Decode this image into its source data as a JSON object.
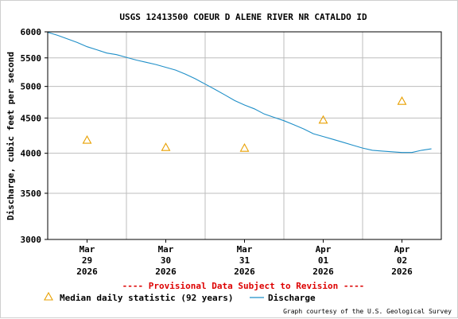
{
  "chart_data": {
    "type": "line",
    "title": "USGS 12413500 COEUR D ALENE RIVER NR CATALDO ID",
    "ylabel": "Discharge, cubic feet per second",
    "xlabel": "",
    "y_scale": "log",
    "ylim": [
      3000,
      6000
    ],
    "y_ticks": [
      3000,
      3500,
      4000,
      4500,
      5000,
      5500,
      6000
    ],
    "y_tick_labels": [
      "3000",
      "3500",
      "4000",
      "4500",
      "5000",
      "5500",
      "6000"
    ],
    "x_range": [
      "2026-03-28 12:00",
      "2026-04-02 12:00"
    ],
    "x_ticks": [
      {
        "x": "2026-03-29 00:00",
        "line1": "Mar",
        "line2": "29",
        "line3": "2026"
      },
      {
        "x": "2026-03-30 00:00",
        "line1": "Mar",
        "line2": "30",
        "line3": "2026"
      },
      {
        "x": "2026-03-31 00:00",
        "line1": "Mar",
        "line2": "31",
        "line3": "2026"
      },
      {
        "x": "2026-04-01 00:00",
        "line1": "Apr",
        "line2": "01",
        "line3": "2026"
      },
      {
        "x": "2026-04-02 00:00",
        "line1": "Apr",
        "line2": "02",
        "line3": "2026"
      }
    ],
    "grid": true,
    "series": [
      {
        "name": "Discharge",
        "color": "#1f8fc8",
        "points": [
          [
            "2026-03-28 12:00",
            5990
          ],
          [
            "2026-03-28 15:00",
            5930
          ],
          [
            "2026-03-28 18:00",
            5860
          ],
          [
            "2026-03-28 21:00",
            5790
          ],
          [
            "2026-03-29 00:00",
            5710
          ],
          [
            "2026-03-29 03:00",
            5650
          ],
          [
            "2026-03-29 06:00",
            5590
          ],
          [
            "2026-03-29 09:00",
            5560
          ],
          [
            "2026-03-29 12:00",
            5510
          ],
          [
            "2026-03-29 15:00",
            5460
          ],
          [
            "2026-03-29 18:00",
            5420
          ],
          [
            "2026-03-29 21:00",
            5380
          ],
          [
            "2026-03-30 00:00",
            5330
          ],
          [
            "2026-03-30 03:00",
            5280
          ],
          [
            "2026-03-30 06:00",
            5210
          ],
          [
            "2026-03-30 09:00",
            5130
          ],
          [
            "2026-03-30 12:00",
            5040
          ],
          [
            "2026-03-30 15:00",
            4950
          ],
          [
            "2026-03-30 18:00",
            4860
          ],
          [
            "2026-03-30 21:00",
            4770
          ],
          [
            "2026-03-31 00:00",
            4700
          ],
          [
            "2026-03-31 03:00",
            4640
          ],
          [
            "2026-03-31 06:00",
            4560
          ],
          [
            "2026-03-31 09:00",
            4510
          ],
          [
            "2026-03-31 12:00",
            4460
          ],
          [
            "2026-03-31 15:00",
            4400
          ],
          [
            "2026-03-31 18:00",
            4340
          ],
          [
            "2026-03-31 21:00",
            4270
          ],
          [
            "2026-04-01 00:00",
            4230
          ],
          [
            "2026-04-01 03:00",
            4190
          ],
          [
            "2026-04-01 06:00",
            4150
          ],
          [
            "2026-04-01 09:00",
            4110
          ],
          [
            "2026-04-01 12:00",
            4070
          ],
          [
            "2026-04-01 15:00",
            4040
          ],
          [
            "2026-04-01 18:00",
            4030
          ],
          [
            "2026-04-01 21:00",
            4020
          ],
          [
            "2026-04-02 00:00",
            4010
          ],
          [
            "2026-04-02 03:00",
            4010
          ],
          [
            "2026-04-02 06:00",
            4040
          ],
          [
            "2026-04-02 09:00",
            4060
          ]
        ]
      },
      {
        "name": "Median daily statistic (92 years)",
        "color": "#e8a000",
        "marker": "triangle",
        "points": [
          [
            "2026-03-29 00:00",
            4180
          ],
          [
            "2026-03-30 00:00",
            4080
          ],
          [
            "2026-03-31 00:00",
            4070
          ],
          [
            "2026-04-01 00:00",
            4470
          ],
          [
            "2026-04-02 00:00",
            4760
          ]
        ]
      }
    ],
    "legend_placement": "bottom",
    "annotations": {
      "provisional": "---- Provisional Data Subject to Revision ----",
      "credit": "Graph courtesy of the U.S. Geological Survey"
    },
    "colors": {
      "axis": "#000000",
      "grid": "#bdbdbd",
      "provisional": "#dd0000"
    }
  }
}
